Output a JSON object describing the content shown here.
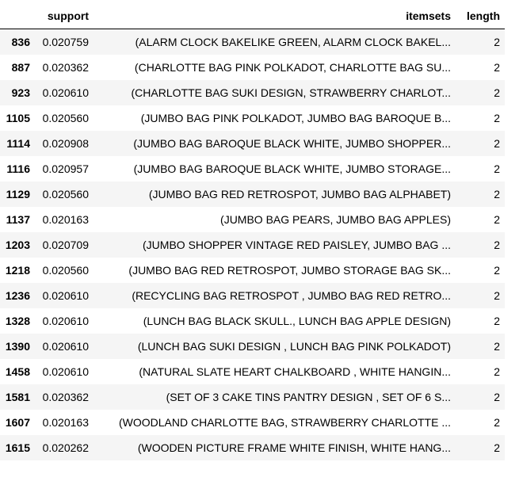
{
  "table": {
    "columns": [
      "",
      "support",
      "itemsets",
      "length"
    ],
    "rows": [
      {
        "index": "836",
        "support": "0.020759",
        "itemsets": "(ALARM CLOCK BAKELIKE GREEN, ALARM CLOCK BAKEL...",
        "length": "2"
      },
      {
        "index": "887",
        "support": "0.020362",
        "itemsets": "(CHARLOTTE BAG PINK POLKADOT, CHARLOTTE BAG SU...",
        "length": "2"
      },
      {
        "index": "923",
        "support": "0.020610",
        "itemsets": "(CHARLOTTE BAG SUKI DESIGN, STRAWBERRY CHARLOT...",
        "length": "2"
      },
      {
        "index": "1105",
        "support": "0.020560",
        "itemsets": "(JUMBO BAG PINK POLKADOT, JUMBO BAG BAROQUE B...",
        "length": "2"
      },
      {
        "index": "1114",
        "support": "0.020908",
        "itemsets": "(JUMBO BAG BAROQUE BLACK WHITE, JUMBO SHOPPER...",
        "length": "2"
      },
      {
        "index": "1116",
        "support": "0.020957",
        "itemsets": "(JUMBO BAG BAROQUE BLACK WHITE, JUMBO STORAGE...",
        "length": "2"
      },
      {
        "index": "1129",
        "support": "0.020560",
        "itemsets": "(JUMBO BAG RED RETROSPOT, JUMBO BAG ALPHABET)",
        "length": "2"
      },
      {
        "index": "1137",
        "support": "0.020163",
        "itemsets": "(JUMBO BAG PEARS, JUMBO BAG APPLES)",
        "length": "2"
      },
      {
        "index": "1203",
        "support": "0.020709",
        "itemsets": "(JUMBO SHOPPER VINTAGE RED PAISLEY, JUMBO BAG ...",
        "length": "2"
      },
      {
        "index": "1218",
        "support": "0.020560",
        "itemsets": "(JUMBO BAG RED RETROSPOT, JUMBO STORAGE BAG SK...",
        "length": "2"
      },
      {
        "index": "1236",
        "support": "0.020610",
        "itemsets": "(RECYCLING BAG RETROSPOT , JUMBO BAG RED RETRO...",
        "length": "2"
      },
      {
        "index": "1328",
        "support": "0.020610",
        "itemsets": "(LUNCH BAG BLACK SKULL., LUNCH BAG APPLE DESIGN)",
        "length": "2"
      },
      {
        "index": "1390",
        "support": "0.020610",
        "itemsets": "(LUNCH BAG SUKI DESIGN , LUNCH BAG PINK POLKADOT)",
        "length": "2"
      },
      {
        "index": "1458",
        "support": "0.020610",
        "itemsets": "(NATURAL SLATE HEART CHALKBOARD , WHITE HANGIN...",
        "length": "2"
      },
      {
        "index": "1581",
        "support": "0.020362",
        "itemsets": "(SET OF 3 CAKE TINS PANTRY DESIGN , SET OF 6 S...",
        "length": "2"
      },
      {
        "index": "1607",
        "support": "0.020163",
        "itemsets": "(WOODLAND CHARLOTTE BAG, STRAWBERRY CHARLOTTE ...",
        "length": "2"
      },
      {
        "index": "1615",
        "support": "0.020262",
        "itemsets": "(WOODEN PICTURE FRAME WHITE FINISH, WHITE HANG...",
        "length": "2"
      }
    ]
  }
}
